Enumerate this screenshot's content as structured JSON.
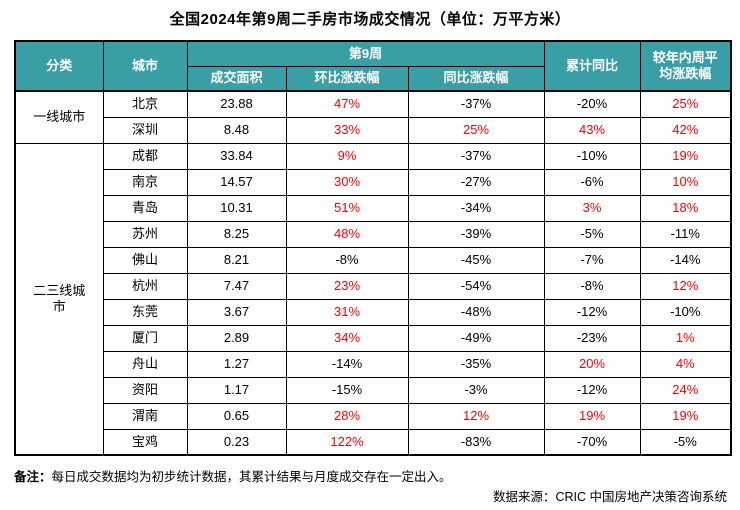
{
  "title": "全国2024年第9周二手房市场成交情况（单位：万平方米）",
  "chart_data": {
    "type": "table",
    "title": "全国2024年第9周二手房市场成交情况",
    "unit": "万平方米",
    "column_groups": [
      {
        "label": "第9周",
        "columns": [
          "成交面积",
          "环比涨跌幅",
          "同比涨跌幅"
        ]
      }
    ],
    "columns": [
      "分类",
      "城市",
      "成交面积",
      "环比涨跌幅",
      "同比涨跌幅",
      "累计同比",
      "较年内周平均涨跌幅"
    ],
    "rows": [
      [
        "一线城市",
        "北京",
        "23.88",
        "47%",
        "-37%",
        "-20%",
        "25%"
      ],
      [
        "一线城市",
        "深圳",
        "8.48",
        "33%",
        "25%",
        "43%",
        "42%"
      ],
      [
        "二三线城市",
        "成都",
        "33.84",
        "9%",
        "-37%",
        "-10%",
        "19%"
      ],
      [
        "二三线城市",
        "南京",
        "14.57",
        "30%",
        "-27%",
        "-6%",
        "10%"
      ],
      [
        "二三线城市",
        "青岛",
        "10.31",
        "51%",
        "-34%",
        "3%",
        "18%"
      ],
      [
        "二三线城市",
        "苏州",
        "8.25",
        "48%",
        "-39%",
        "-5%",
        "-11%"
      ],
      [
        "二三线城市",
        "佛山",
        "8.21",
        "-8%",
        "-45%",
        "-7%",
        "-14%"
      ],
      [
        "二三线城市",
        "杭州",
        "7.47",
        "23%",
        "-54%",
        "-8%",
        "12%"
      ],
      [
        "二三线城市",
        "东莞",
        "3.67",
        "31%",
        "-48%",
        "-12%",
        "-10%"
      ],
      [
        "二三线城市",
        "厦门",
        "2.89",
        "34%",
        "-49%",
        "-23%",
        "1%"
      ],
      [
        "二三线城市",
        "舟山",
        "1.27",
        "-14%",
        "-35%",
        "20%",
        "4%"
      ],
      [
        "二三线城市",
        "资阳",
        "1.17",
        "-15%",
        "-3%",
        "-12%",
        "24%"
      ],
      [
        "二三线城市",
        "渭南",
        "0.65",
        "28%",
        "12%",
        "19%",
        "19%"
      ],
      [
        "二三线城市",
        "宝鸡",
        "0.23",
        "122%",
        "-83%",
        "-70%",
        "-5%"
      ]
    ]
  },
  "table": {
    "headers": {
      "category": "分类",
      "city": "城市",
      "week_group": "第9周",
      "area": "成交面积",
      "wow": "环比涨跌幅",
      "yoy": "同比涨跌幅",
      "cum_yoy": "累计同比",
      "vs_weekly_avg": "较年内周平\n均涨跌幅"
    },
    "category_display": {
      "一线城市": "一线城市",
      "二三线城市": "二三线城\n市"
    }
  },
  "footer": {
    "note_label": "备注：",
    "note": "每日成交数据均为初步统计数据，其累计结果与月度成交存在一定出入。",
    "source": "数据来源：CRIC 中国房地产决策咨询系统"
  },
  "colors": {
    "header_bg": "#3a9ea5",
    "header_text": "#ffffff",
    "positive_value": "#ff0000",
    "text": "#000000"
  }
}
